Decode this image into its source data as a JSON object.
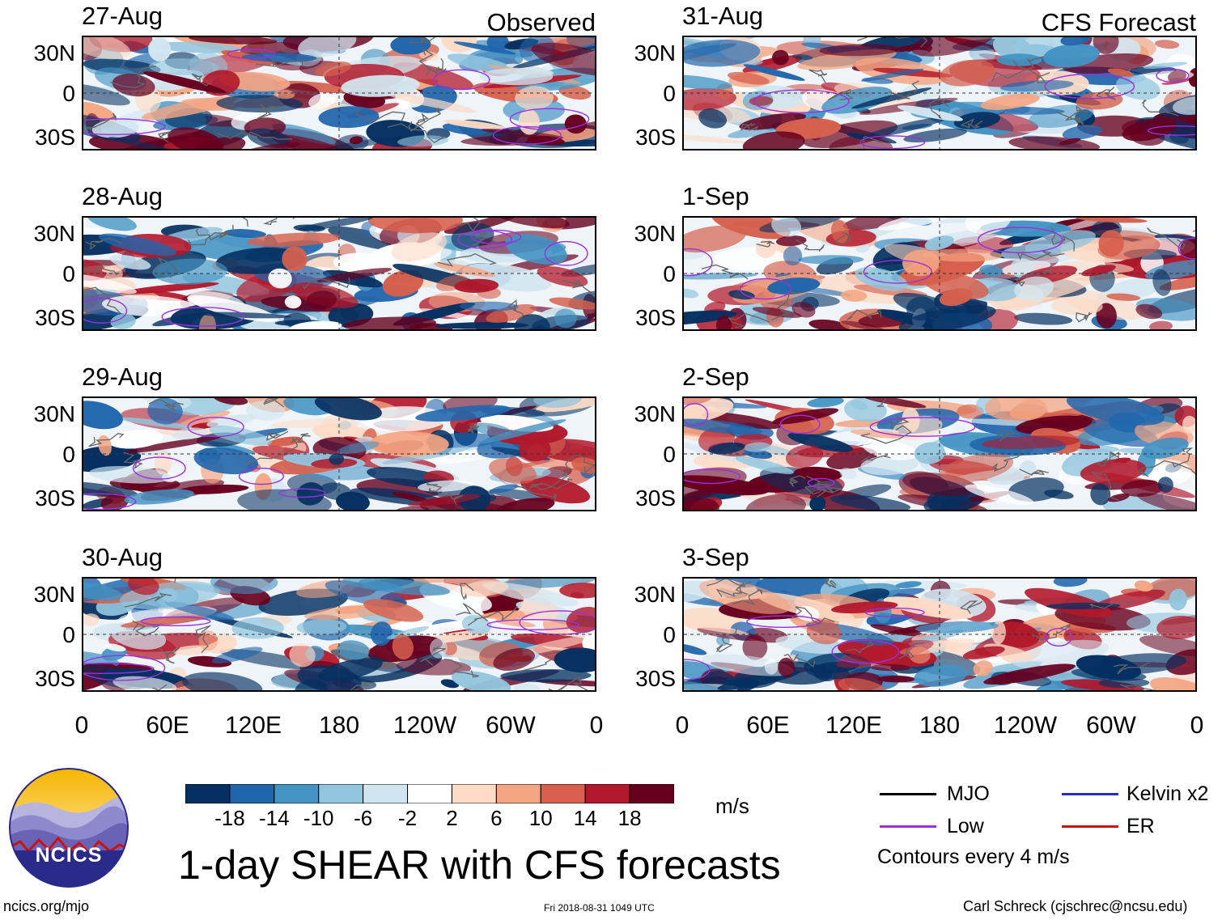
{
  "header": {
    "left_label": "Observed",
    "right_label": "CFS Forecast"
  },
  "chart_data": {
    "type": "heatmap",
    "title": "1-day SHEAR with CFS forecasts",
    "units": "m/s",
    "contour_note": "Contours every 4 m/s",
    "lat_ticks": [
      "30N",
      "0",
      "30S"
    ],
    "lon_ticks": [
      "0",
      "60E",
      "120E",
      "180",
      "120W",
      "60W",
      "0"
    ],
    "colorbar_levels": [
      "-18",
      "-14",
      "-10",
      "-6",
      "-2",
      "2",
      "6",
      "10",
      "14",
      "18"
    ],
    "colorbar_colors": [
      "#053061",
      "#2166ac",
      "#4393c3",
      "#92c5de",
      "#d1e5f0",
      "#ffffff",
      "#fddbc7",
      "#f4a582",
      "#d6604d",
      "#b2182b",
      "#67001f"
    ],
    "panels_observed": [
      {
        "date": "27-Aug"
      },
      {
        "date": "28-Aug"
      },
      {
        "date": "29-Aug"
      },
      {
        "date": "30-Aug"
      }
    ],
    "panels_forecast": [
      {
        "date": "31-Aug"
      },
      {
        "date": "1-Sep"
      },
      {
        "date": "2-Sep"
      },
      {
        "date": "3-Sep"
      }
    ],
    "legend": [
      {
        "label": "MJO",
        "color": "#000000"
      },
      {
        "label": "Low",
        "color": "#9b30e0"
      },
      {
        "label": "Kelvin x2",
        "color": "#2b2bc8"
      },
      {
        "label": "ER",
        "color": "#cc1111"
      }
    ]
  },
  "footer": {
    "site": "ncics.org/mjo",
    "timestamp": "Fri 2018-08-31 1049 UTC",
    "author": "Carl Schreck (cjschrec@ncsu.edu)",
    "logo_text": "NCICS"
  }
}
